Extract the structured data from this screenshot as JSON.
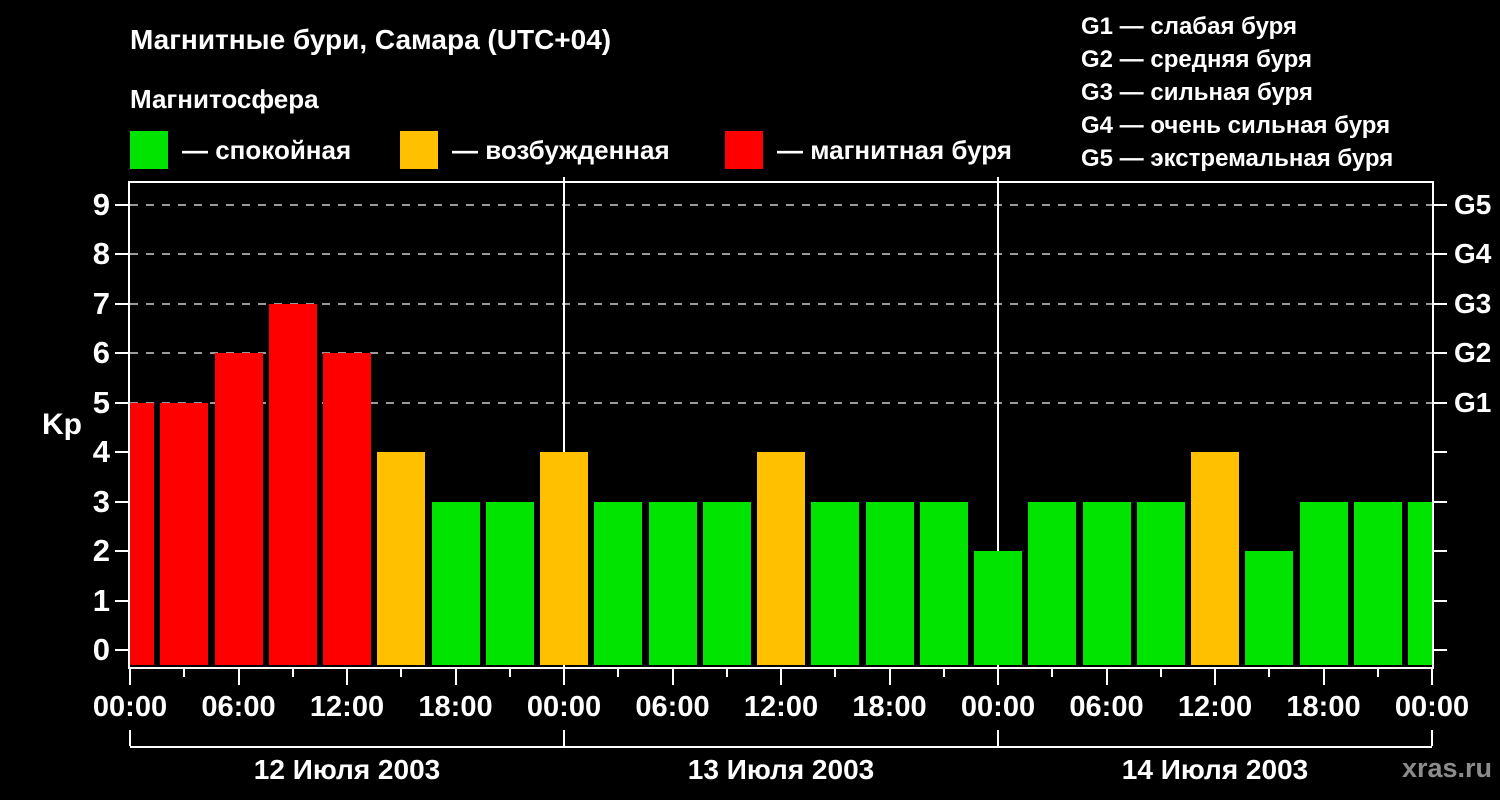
{
  "header": {
    "title": "Магнитные бури, Самара (UTC+04)",
    "subtitle": "Магнитосфера",
    "legend": [
      {
        "key": "quiet",
        "label": "— спокойная",
        "color": "#00e400"
      },
      {
        "key": "excited",
        "label": "— возбужденная",
        "color": "#ffc000"
      },
      {
        "key": "storm",
        "label": "— магнитная буря",
        "color": "#ff0000"
      }
    ],
    "storm_scale": [
      "G1 — слабая буря",
      "G2 — средняя буря",
      "G3 — сильная буря",
      "G4 — очень сильная буря",
      "G5 — экстремальная буря"
    ]
  },
  "watermark": "xras.ru",
  "chart_data": {
    "type": "bar",
    "title": "Магнитные бури, Самара (UTC+04)",
    "ylabel": "Kp",
    "ylim": [
      0,
      9
    ],
    "grid": "horizontal dashed gray lines at Kp 5,6,7,8,9",
    "legend_position": "top",
    "bar_interval_hours": 3,
    "y_ticks": [
      0,
      1,
      2,
      3,
      4,
      5,
      6,
      7,
      8,
      9
    ],
    "right_axis": [
      {
        "label": "G1",
        "kp": 5
      },
      {
        "label": "G2",
        "kp": 6
      },
      {
        "label": "G3",
        "kp": 7
      },
      {
        "label": "G4",
        "kp": 8
      },
      {
        "label": "G5",
        "kp": 9
      }
    ],
    "x_tick_labels": [
      "00:00",
      "06:00",
      "12:00",
      "18:00",
      "00:00",
      "06:00",
      "12:00",
      "18:00",
      "00:00",
      "06:00",
      "12:00",
      "18:00",
      "00:00"
    ],
    "bar_hours": [
      "00:00",
      "03:00",
      "06:00",
      "09:00",
      "12:00",
      "15:00",
      "18:00",
      "21:00"
    ],
    "days": [
      {
        "date": "12 Июля 2003",
        "kp": [
          5,
          5,
          6,
          7,
          6,
          4,
          3,
          3
        ]
      },
      {
        "date": "13 Июля 2003",
        "kp": [
          4,
          3,
          3,
          3,
          4,
          3,
          3,
          3
        ]
      },
      {
        "date": "14 Июля 2003",
        "kp": [
          2,
          3,
          3,
          3,
          4,
          2,
          3,
          3
        ]
      }
    ],
    "trailing_kp": 3,
    "color_rules": {
      "quiet_kp_max": 3,
      "excited_kp": 4,
      "storm_kp_min": 5
    },
    "colors": {
      "quiet": "#00e400",
      "excited": "#ffc000",
      "storm": "#ff0000"
    }
  }
}
